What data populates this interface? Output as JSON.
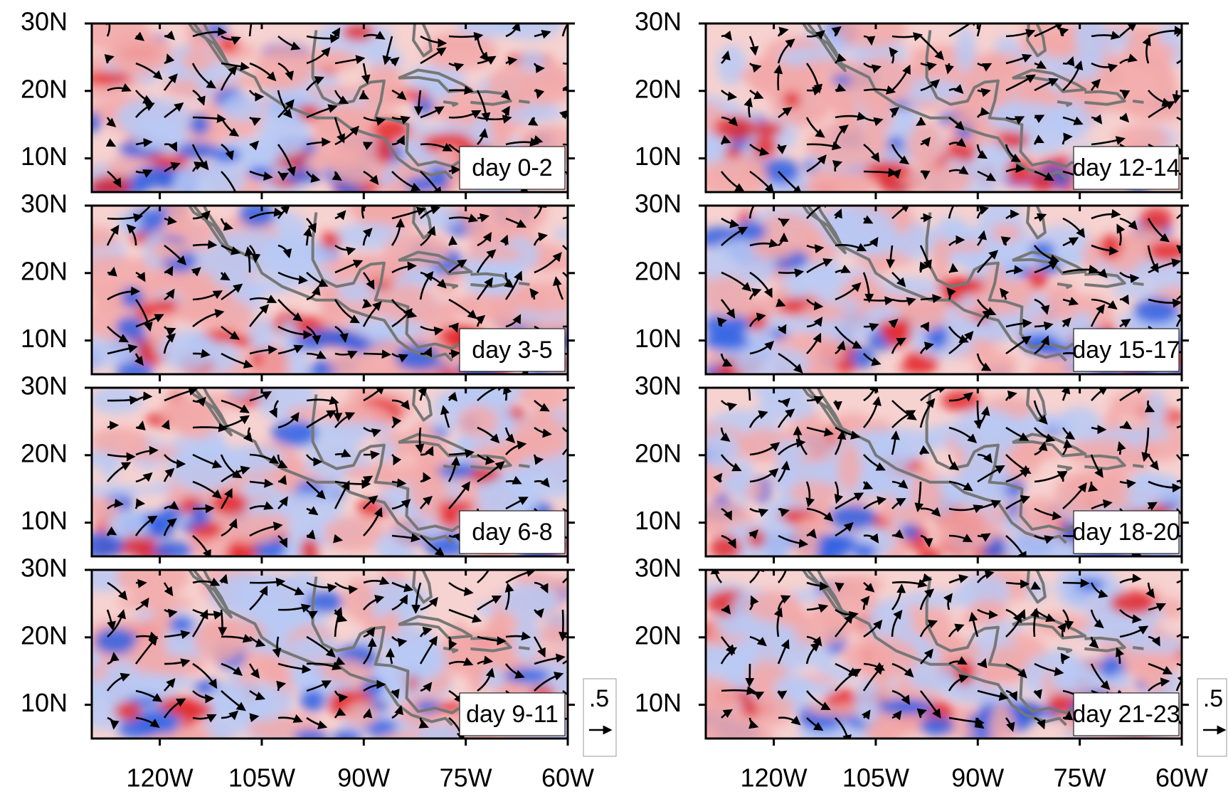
{
  "panels": [
    {
      "label": "day 0-2"
    },
    {
      "label": "day 3-5"
    },
    {
      "label": "day 6-8"
    },
    {
      "label": "day 9-11"
    },
    {
      "label": "day 12-14"
    },
    {
      "label": "day 15-17"
    },
    {
      "label": "day 18-20"
    },
    {
      "label": "day 21-23"
    }
  ],
  "axes": {
    "xlim": [
      -130,
      -60
    ],
    "ylim": [
      5,
      30
    ],
    "xticks": [
      {
        "value": -120,
        "label": "120W"
      },
      {
        "value": -105,
        "label": "105W"
      },
      {
        "value": -90,
        "label": "90W"
      },
      {
        "value": -75,
        "label": "75W"
      },
      {
        "value": -60,
        "label": "60W"
      }
    ],
    "yticks": [
      {
        "value": 30,
        "label": "30N"
      },
      {
        "value": 20,
        "label": "20N"
      },
      {
        "value": 10,
        "label": "10N"
      }
    ]
  },
  "reference_vector": {
    "value": 0.5,
    "label": ".5"
  }
}
